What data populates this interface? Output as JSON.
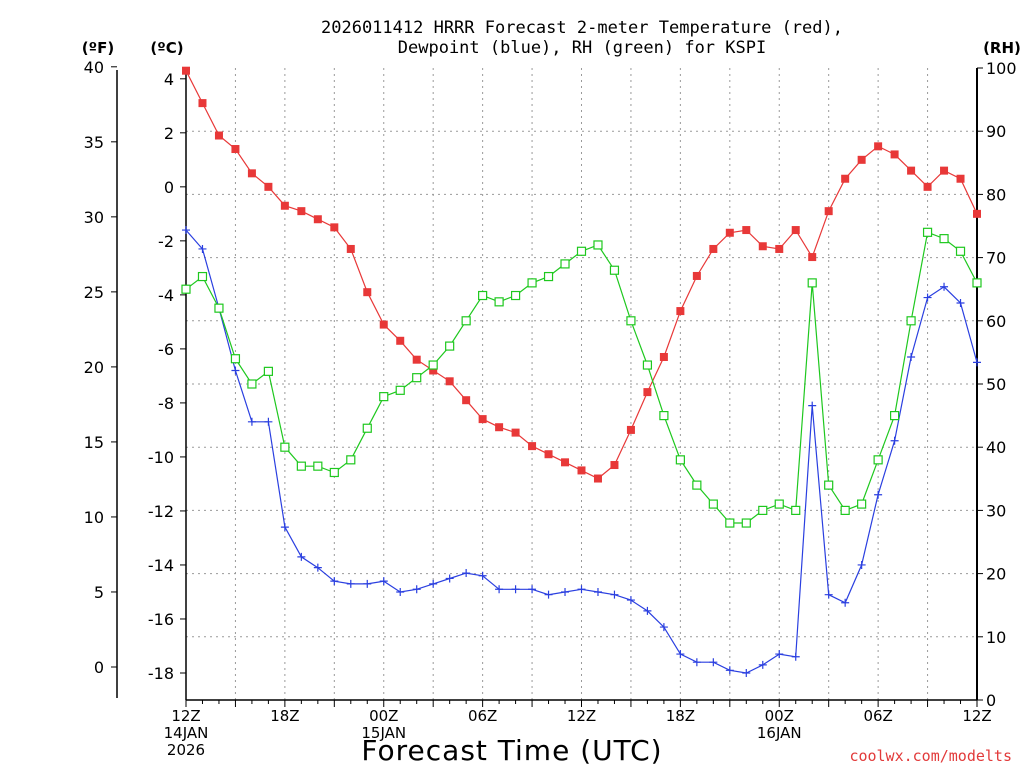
{
  "chart_data": {
    "type": "line",
    "title": [
      "2026011412 HRRR Forecast 2-meter Temperature (red),",
      "Dewpoint (blue), RH (green) for KSPI"
    ],
    "xlabel": "Forecast Time (UTC)",
    "unit_labels": {
      "fahrenheit": "(ºF)",
      "celsius": "(ºC)",
      "rh": "(RH)"
    },
    "credit": "coolwx.com/modelts",
    "x_ticks": [
      {
        "hour": 0,
        "lines": [
          "12Z",
          "14JAN",
          "2026"
        ]
      },
      {
        "hour": 6,
        "lines": [
          "18Z"
        ]
      },
      {
        "hour": 12,
        "lines": [
          "00Z",
          "15JAN"
        ]
      },
      {
        "hour": 18,
        "lines": [
          "06Z"
        ]
      },
      {
        "hour": 24,
        "lines": [
          "12Z"
        ]
      },
      {
        "hour": 30,
        "lines": [
          "18Z"
        ]
      },
      {
        "hour": 36,
        "lines": [
          "00Z",
          "16JAN"
        ]
      },
      {
        "hour": 42,
        "lines": [
          "06Z"
        ]
      },
      {
        "hour": 48,
        "lines": [
          "12Z"
        ]
      }
    ],
    "xlim": [
      0,
      48
    ],
    "celsius_axis": {
      "ylim": [
        -19,
        4.4
      ],
      "ticks": [
        4,
        2,
        0,
        -2,
        -4,
        -6,
        -8,
        -10,
        -12,
        -14,
        -16,
        -18
      ]
    },
    "fahrenheit_axis": {
      "ticks": [
        40,
        35,
        30,
        25,
        20,
        15,
        10,
        5,
        0
      ]
    },
    "rh_axis": {
      "ylim": [
        0,
        100
      ],
      "ticks": [
        100,
        90,
        80,
        70,
        60,
        50,
        40,
        30,
        20,
        10,
        0
      ]
    },
    "grid": true,
    "colors": {
      "temperature": "#e83838",
      "dewpoint": "#2a3fe0",
      "rh": "#1ec81e"
    },
    "series": [
      {
        "key": "temperature",
        "axis": "celsius",
        "marker": "filled-square",
        "values": [
          4.3,
          3.1,
          1.9,
          1.4,
          0.5,
          0.0,
          -0.7,
          -0.9,
          -1.2,
          -1.5,
          -2.3,
          -3.9,
          -5.1,
          -5.7,
          -6.4,
          -6.8,
          -7.2,
          -7.9,
          -8.6,
          -8.9,
          -9.1,
          -9.6,
          -9.9,
          -10.2,
          -10.5,
          -10.8,
          -10.3,
          -9.0,
          -7.6,
          -6.3,
          -4.6,
          -3.3,
          -2.3,
          -1.7,
          -1.6,
          -2.2,
          -2.3,
          -1.6,
          -2.6,
          -0.9,
          0.3,
          1.0,
          1.5,
          1.2,
          0.6,
          0.0,
          0.6,
          0.3,
          -1.0
        ]
      },
      {
        "key": "dewpoint",
        "axis": "celsius",
        "marker": "plus",
        "values": [
          -1.6,
          -2.3,
          -4.5,
          -6.8,
          -8.7,
          -8.7,
          -12.6,
          -13.7,
          -14.1,
          -14.6,
          -14.7,
          -14.7,
          -14.6,
          -15.0,
          -14.9,
          -14.7,
          -14.5,
          -14.3,
          -14.4,
          -14.9,
          -14.9,
          -14.9,
          -15.1,
          -15.0,
          -14.9,
          -15.0,
          -15.1,
          -15.3,
          -15.7,
          -16.3,
          -17.3,
          -17.6,
          -17.6,
          -17.9,
          -18.0,
          -17.7,
          -17.3,
          -17.4,
          -8.1,
          -15.1,
          -15.4,
          -14.0,
          -11.4,
          -9.4,
          -6.3,
          -4.1,
          -3.7,
          -4.3,
          -6.5
        ]
      },
      {
        "key": "rh",
        "axis": "rh",
        "marker": "open-square",
        "values": [
          65,
          67,
          62,
          54,
          50,
          52,
          40,
          37,
          37,
          36,
          38,
          43,
          48,
          49,
          51,
          53,
          56,
          60,
          64,
          63,
          64,
          66,
          67,
          69,
          71,
          72,
          68,
          60,
          53,
          45,
          38,
          34,
          31,
          28,
          28,
          30,
          31,
          30,
          66,
          34,
          30,
          31,
          38,
          45,
          60,
          74,
          73,
          71,
          66
        ]
      }
    ]
  }
}
